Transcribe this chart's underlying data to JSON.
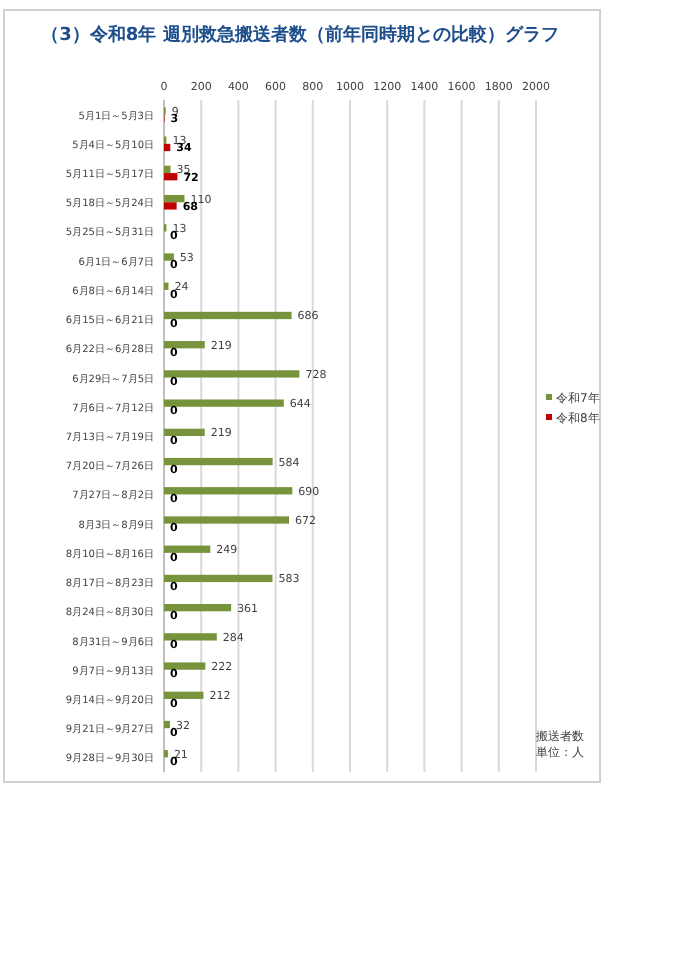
{
  "chart_data": {
    "type": "bar",
    "orientation": "horizontal",
    "title": "（3）令和8年 週別救急搬送者数（前年同時期との比較）グラフ",
    "categories": [
      "5月1日～5月3日",
      "5月4日～5月10日",
      "5月11日～5月17日",
      "5月18日～5月24日",
      "5月25日～5月31日",
      "6月1日～6月7日",
      "6月8日～6月14日",
      "6月15日～6月21日",
      "6月22日～6月28日",
      "6月29日～7月5日",
      "7月6日～7月12日",
      "7月13日～7月19日",
      "7月20日～7月26日",
      "7月27日～8月2日",
      "8月3日～8月9日",
      "8月10日～8月16日",
      "8月17日～8月23日",
      "8月24日～8月30日",
      "8月31日～9月6日",
      "9月7日～9月13日",
      "9月14日～9月20日",
      "9月21日～9月27日",
      "9月28日～9月30日"
    ],
    "series": [
      {
        "name": "令和7年",
        "color": "#77933c",
        "values": [
          9,
          13,
          35,
          110,
          13,
          53,
          24,
          686,
          219,
          728,
          644,
          219,
          584,
          690,
          672,
          249,
          583,
          361,
          284,
          222,
          212,
          32,
          21
        ]
      },
      {
        "name": "令和8年",
        "color": "#c00000",
        "values": [
          3,
          34,
          72,
          68,
          0,
          0,
          0,
          0,
          0,
          0,
          0,
          0,
          0,
          0,
          0,
          0,
          0,
          0,
          0,
          0,
          0,
          0,
          0
        ]
      }
    ],
    "xlim": [
      0,
      2000
    ],
    "xticks": [
      0,
      200,
      400,
      600,
      800,
      1000,
      1200,
      1400,
      1600,
      1800,
      2000
    ],
    "grid": "x",
    "legend": "right",
    "data_labels": true,
    "annotations": [
      "搬送者数",
      "単位：人"
    ]
  }
}
